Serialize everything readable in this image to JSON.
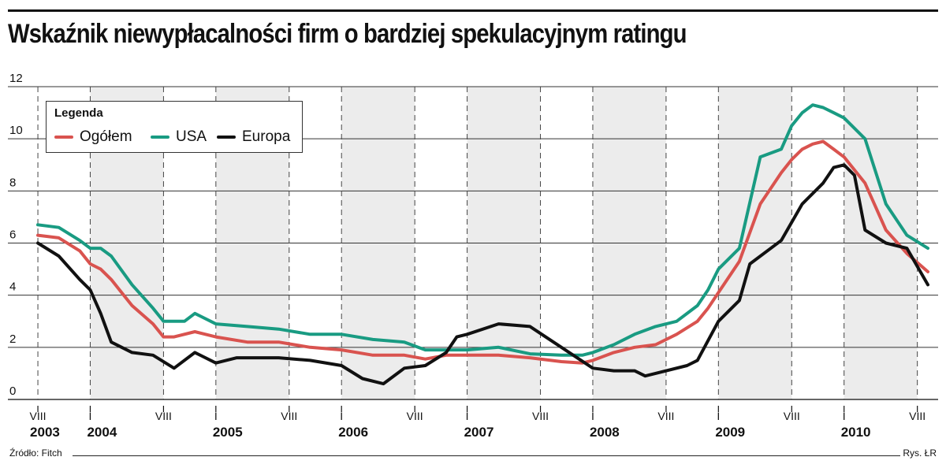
{
  "title": "Wskaźnik niewypłacalności firm o bardziej spekulacyjnym ratingu",
  "source": "Źródło: Fitch",
  "credit": "Rys. ŁR",
  "legend": {
    "title": "Legenda"
  },
  "colors": {
    "Ogółem": "#d9534f",
    "USA": "#199b82",
    "Europa": "#111111",
    "band": "#ececec",
    "grid": "#333333"
  },
  "chart_data": {
    "type": "line",
    "ylim": [
      0,
      12
    ],
    "yticks": [
      "0",
      "2",
      "4",
      "6",
      "8",
      "10",
      "12"
    ],
    "x_range": [
      2003.583,
      2010.667
    ],
    "grid": "horizontal solid, vertical dashed",
    "legend_position": "top-left",
    "month_ticks": [
      "VIII",
      "I",
      "VIII",
      "I",
      "VIII",
      "I",
      "VIII",
      "I",
      "VIII",
      "I",
      "VIII",
      "I",
      "VIII",
      "I",
      "VIII"
    ],
    "year_labels": [
      "2003",
      "2004",
      "2005",
      "2006",
      "2007",
      "2008",
      "2009",
      "2010"
    ],
    "series": [
      {
        "name": "Ogółem",
        "x": [
          2003.583,
          2003.75,
          2003.917,
          2004.0,
          2004.083,
          2004.167,
          2004.333,
          2004.5,
          2004.583,
          2004.667,
          2004.833,
          2005.0,
          2005.25,
          2005.5,
          2005.75,
          2006.0,
          2006.25,
          2006.5,
          2006.667,
          2006.833,
          2007.0,
          2007.25,
          2007.5,
          2007.75,
          2007.917,
          2008.0,
          2008.167,
          2008.333,
          2008.5,
          2008.667,
          2008.833,
          2008.917,
          2009.0,
          2009.167,
          2009.333,
          2009.5,
          2009.583,
          2009.667,
          2009.75,
          2009.833,
          2009.917,
          2010.0,
          2010.167,
          2010.333,
          2010.5,
          2010.667
        ],
        "y": [
          6.3,
          6.2,
          5.7,
          5.2,
          5.0,
          4.6,
          3.6,
          2.9,
          2.4,
          2.4,
          2.6,
          2.4,
          2.2,
          2.2,
          2.0,
          1.9,
          1.7,
          1.7,
          1.55,
          1.7,
          1.7,
          1.7,
          1.6,
          1.45,
          1.4,
          1.5,
          1.8,
          2.0,
          2.1,
          2.5,
          3.0,
          3.5,
          4.1,
          5.3,
          7.5,
          8.7,
          9.2,
          9.6,
          9.8,
          9.9,
          9.6,
          9.3,
          8.3,
          6.5,
          5.6,
          4.9
        ]
      },
      {
        "name": "USA",
        "x": [
          2003.583,
          2003.75,
          2003.917,
          2004.0,
          2004.083,
          2004.167,
          2004.333,
          2004.5,
          2004.583,
          2004.75,
          2004.833,
          2005.0,
          2005.25,
          2005.5,
          2005.75,
          2006.0,
          2006.25,
          2006.5,
          2006.667,
          2006.833,
          2007.0,
          2007.25,
          2007.5,
          2007.75,
          2007.917,
          2008.0,
          2008.167,
          2008.333,
          2008.5,
          2008.667,
          2008.833,
          2008.917,
          2009.0,
          2009.167,
          2009.333,
          2009.5,
          2009.583,
          2009.667,
          2009.75,
          2009.833,
          2009.917,
          2010.0,
          2010.167,
          2010.333,
          2010.5,
          2010.667
        ],
        "y": [
          6.7,
          6.6,
          6.1,
          5.8,
          5.8,
          5.5,
          4.4,
          3.5,
          3.0,
          3.0,
          3.3,
          2.9,
          2.8,
          2.7,
          2.5,
          2.5,
          2.3,
          2.2,
          1.9,
          1.9,
          1.9,
          2.0,
          1.75,
          1.7,
          1.7,
          1.8,
          2.1,
          2.5,
          2.8,
          3.0,
          3.6,
          4.2,
          5.0,
          5.8,
          9.3,
          9.6,
          10.5,
          11.0,
          11.3,
          11.2,
          11.0,
          10.8,
          10.0,
          7.5,
          6.3,
          5.8
        ]
      },
      {
        "name": "Europa",
        "x": [
          2003.583,
          2003.75,
          2003.917,
          2004.0,
          2004.083,
          2004.167,
          2004.333,
          2004.5,
          2004.667,
          2004.833,
          2005.0,
          2005.167,
          2005.5,
          2005.75,
          2006.0,
          2006.167,
          2006.333,
          2006.5,
          2006.667,
          2006.833,
          2006.917,
          2007.0,
          2007.25,
          2007.5,
          2007.75,
          2008.0,
          2008.167,
          2008.333,
          2008.417,
          2008.5,
          2008.75,
          2008.833,
          2009.0,
          2009.167,
          2009.25,
          2009.5,
          2009.667,
          2009.833,
          2009.917,
          2010.0,
          2010.083,
          2010.167,
          2010.333,
          2010.5,
          2010.667
        ],
        "y": [
          6.0,
          5.5,
          4.6,
          4.2,
          3.3,
          2.2,
          1.8,
          1.7,
          1.2,
          1.8,
          1.4,
          1.6,
          1.6,
          1.5,
          1.3,
          0.8,
          0.6,
          1.2,
          1.3,
          1.8,
          2.4,
          2.5,
          2.9,
          2.8,
          2.0,
          1.2,
          1.1,
          1.1,
          0.9,
          1.0,
          1.3,
          1.5,
          3.0,
          3.8,
          5.2,
          6.1,
          7.5,
          8.3,
          8.9,
          9.0,
          8.6,
          6.5,
          6.0,
          5.8,
          4.4
        ]
      }
    ]
  }
}
